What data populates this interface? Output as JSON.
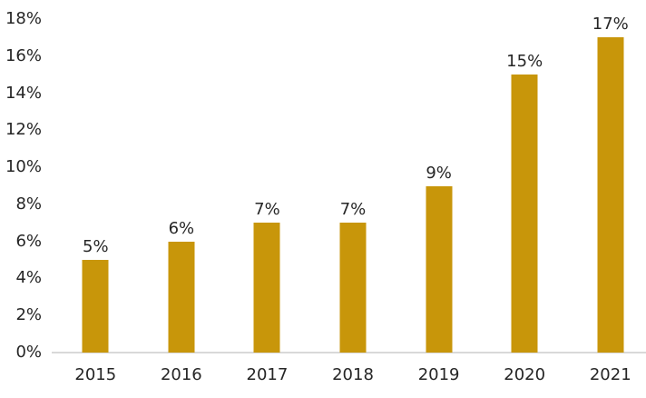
{
  "chart_data": {
    "type": "bar",
    "title": "",
    "categories": [
      "2015",
      "2016",
      "2017",
      "2018",
      "2019",
      "2020",
      "2021"
    ],
    "values": [
      5,
      6,
      7,
      7,
      9,
      15,
      17
    ],
    "data_labels": [
      "5%",
      "6%",
      "7%",
      "7%",
      "9%",
      "15%",
      "17%"
    ],
    "y_ticks": [
      "0%",
      "2%",
      "4%",
      "6%",
      "8%",
      "10%",
      "12%",
      "14%",
      "16%",
      "18%"
    ],
    "y_tick_values": [
      0,
      2,
      4,
      6,
      8,
      10,
      12,
      14,
      16,
      18
    ],
    "xlabel": "",
    "ylabel": "",
    "ylim": [
      0,
      18
    ],
    "grid": false,
    "legend": false,
    "bar_color": "#C8960A",
    "label_color": "#262626",
    "axis_line_color": "#D9D9D9"
  }
}
